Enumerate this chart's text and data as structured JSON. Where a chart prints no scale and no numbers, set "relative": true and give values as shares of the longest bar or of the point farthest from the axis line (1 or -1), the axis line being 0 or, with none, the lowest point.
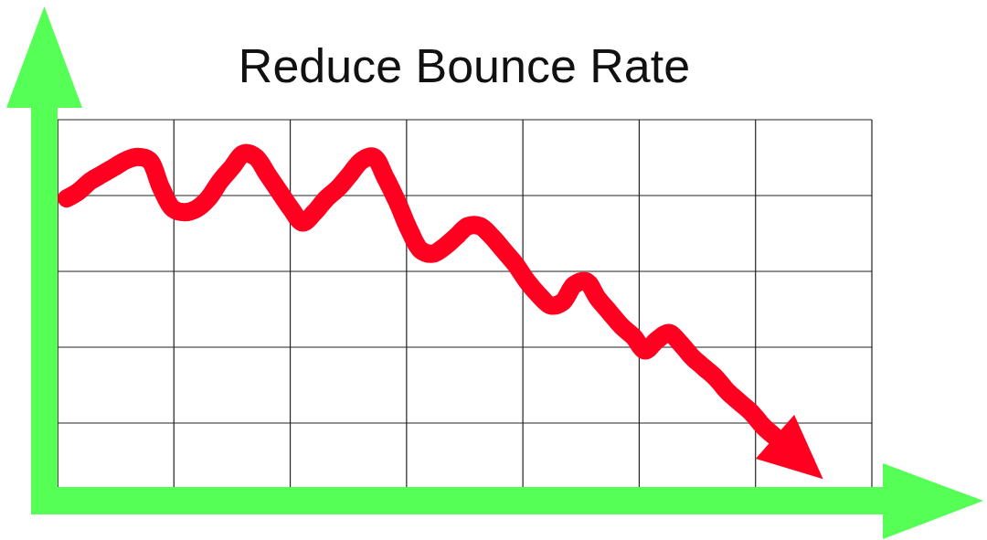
{
  "chart_data": {
    "type": "line",
    "title": "Reduce Bounce Rate",
    "relative": true,
    "grid": true,
    "categories": [
      null,
      null,
      null,
      null,
      null,
      null,
      null,
      null,
      null,
      null,
      null,
      null,
      null,
      null,
      null,
      null,
      null,
      null,
      null,
      null,
      null,
      null,
      null,
      null,
      null,
      null,
      null,
      null,
      null,
      null,
      null,
      null,
      null,
      null,
      null,
      null,
      null,
      null,
      null,
      null,
      null,
      null,
      null,
      null,
      null,
      null,
      null,
      null,
      null,
      null,
      null,
      null,
      null,
      null,
      null,
      null,
      null,
      null,
      null,
      null,
      null
    ],
    "series": [
      {
        "color": "#ff0020",
        "values": [
          0.87,
          0.89,
          0.92,
          0.94,
          0.96,
          0.98,
          0.99,
          0.98,
          0.9,
          0.84,
          0.83,
          0.84,
          0.87,
          0.92,
          0.96,
          1,
          0.99,
          0.94,
          0.89,
          0.84,
          0.8,
          0.83,
          0.87,
          0.9,
          0.94,
          0.98,
          0.99,
          0.93,
          0.86,
          0.78,
          0.72,
          0.71,
          0.73,
          0.76,
          0.79,
          0.79,
          0.76,
          0.72,
          0.68,
          0.63,
          0.59,
          0.56,
          0.57,
          0.62,
          0.63,
          0.58,
          0.54,
          0.5,
          0.47,
          0.43,
          0.46,
          0.48,
          0.45,
          0.41,
          0.38,
          0.35,
          0.31,
          0.28,
          0.25,
          0.21,
          0.18
        ]
      }
    ]
  }
}
